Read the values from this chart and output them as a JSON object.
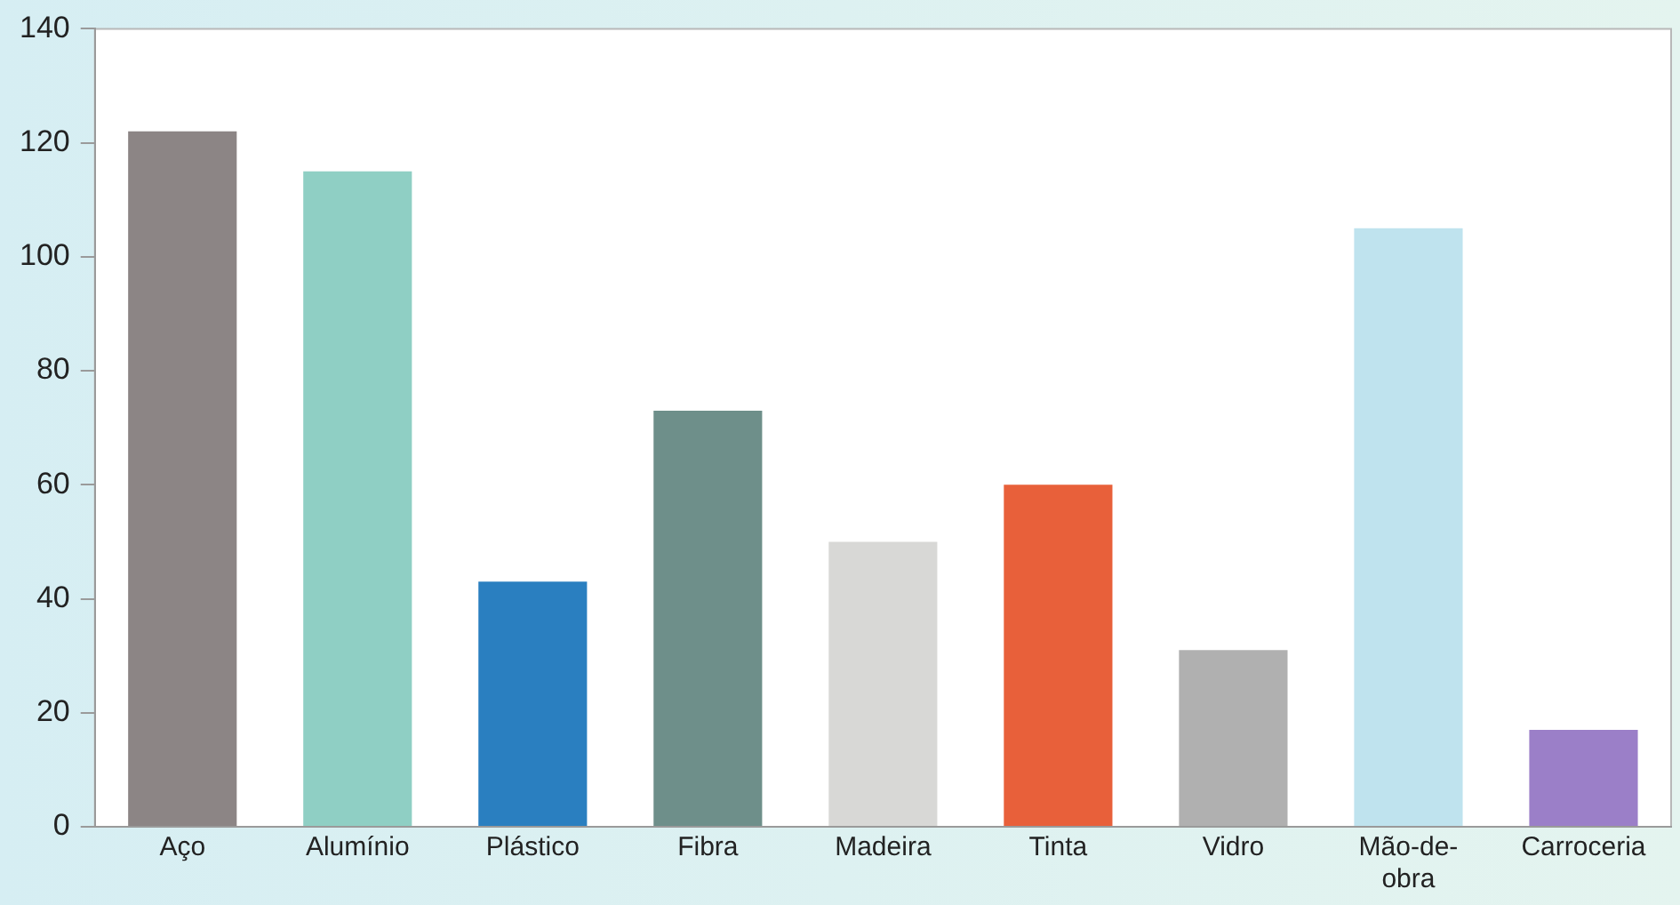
{
  "chart_data": {
    "type": "bar",
    "categories": [
      "Aço",
      "Alumínio",
      "Plástico",
      "Fibra",
      "Madeira",
      "Tinta",
      "Vidro",
      "Mão-de-obra",
      "Carroceria"
    ],
    "values": [
      122,
      115,
      43,
      73,
      50,
      60,
      31,
      105,
      17
    ],
    "colors": [
      "#8c8585",
      "#8fcfc4",
      "#2a7fc0",
      "#6e8f8a",
      "#d8d8d6",
      "#e8603a",
      "#b0b0b0",
      "#bfe3ee",
      "#9b7fc8"
    ],
    "ylim": [
      0,
      140
    ],
    "yticks": [
      0,
      20,
      40,
      60,
      80,
      100,
      120,
      140
    ],
    "grid": false,
    "legend": false
  }
}
